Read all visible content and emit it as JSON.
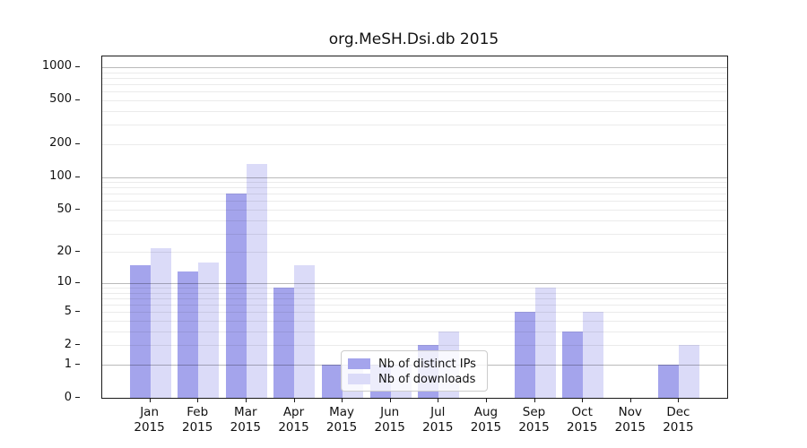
{
  "title": "org.MeSH.Dsi.db 2015",
  "chart_data": {
    "type": "bar",
    "title": "org.MeSH.Dsi.db 2015",
    "categories": [
      "Jan",
      "Feb",
      "Mar",
      "Apr",
      "May",
      "Jun",
      "Jul",
      "Aug",
      "Sep",
      "Oct",
      "Nov",
      "Dec"
    ],
    "category_year": "2015",
    "series": [
      {
        "name": "Nb of distinct IPs",
        "color": "#a4a4ec",
        "values": [
          15,
          13,
          71,
          9,
          1,
          1,
          2,
          0,
          5,
          3,
          0,
          1
        ]
      },
      {
        "name": "Nb of downloads",
        "color": "#dbdbf8",
        "values": [
          22,
          16,
          132,
          15,
          1,
          1,
          3,
          0,
          9,
          5,
          0,
          2
        ]
      }
    ],
    "xlabel": "",
    "ylabel": "",
    "yscale": "log1p",
    "yticks": [
      0,
      1,
      2,
      5,
      10,
      20,
      50,
      100,
      200,
      500,
      1000
    ],
    "ylim": [
      0,
      1250
    ],
    "grid": {
      "shown": true,
      "major_at": [
        1,
        10,
        100,
        1000
      ],
      "minor_decades": true,
      "position": "above-bars"
    },
    "legend": {
      "position": "lower-center-left-of-middle",
      "frame": true
    }
  },
  "legend": {
    "items": [
      {
        "label": "Nb of distinct IPs",
        "color": "#a4a4ec"
      },
      {
        "label": "Nb of downloads",
        "color": "#dbdbf8"
      }
    ]
  },
  "colors": {
    "distinct_ips": "#a4a4ec",
    "downloads": "#dbdbf8",
    "axis": "#1a1a1a",
    "grid_major": "#bababa",
    "grid_minor": "#ebebeb",
    "background": "#ffffff"
  }
}
